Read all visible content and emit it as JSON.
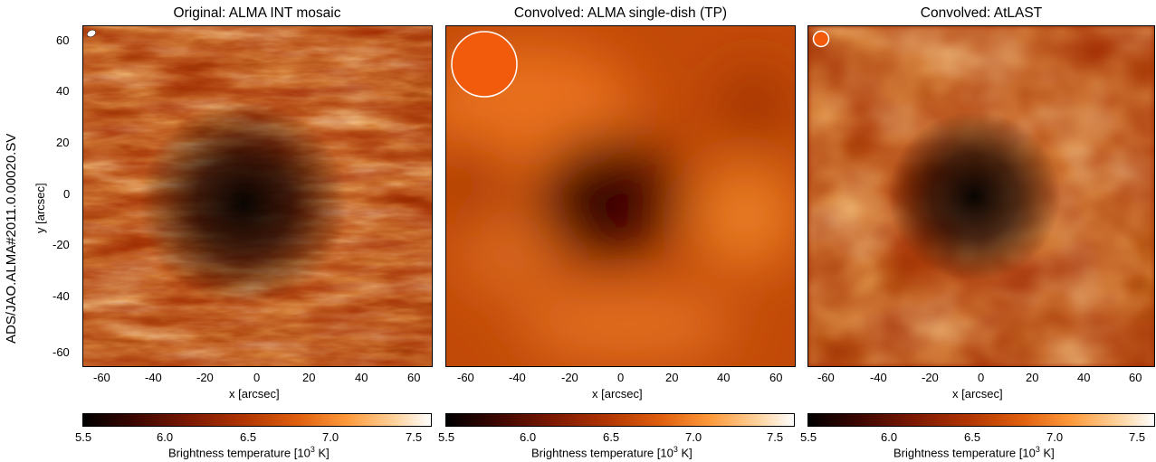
{
  "side_text": "ADS/JAO.ALMA#2011.0.00020.SV",
  "panels": [
    {
      "title": "Original: ALMA INT mosaic",
      "xlabel": "x [arcsec]",
      "ylabel": "y [arcsec]"
    },
    {
      "title": "Convolved: ALMA single-dish (TP)",
      "xlabel": "x [arcsec]"
    },
    {
      "title": "Convolved: AtLAST",
      "xlabel": "x [arcsec]"
    }
  ],
  "x_ticks": [
    "-60",
    "-40",
    "-20",
    "0",
    "20",
    "40",
    "60"
  ],
  "y_ticks": [
    "60",
    "40",
    "20",
    "0",
    "-20",
    "-40",
    "-60"
  ],
  "colorbar": {
    "label_main": "Brightness temperature [10",
    "label_exp": "3",
    "label_end": " K]",
    "ticks": [
      "5.5",
      "6.0",
      "6.5",
      "7.0",
      "7.5"
    ],
    "range": [
      5.5,
      7.6
    ]
  },
  "colors": {
    "cmap": [
      "#000000",
      "#3a0600",
      "#7a1800",
      "#b03400",
      "#e06010",
      "#ff9a3c",
      "#ffd4a0",
      "#ffffff"
    ],
    "beam_fill": "#f25a0c"
  }
}
